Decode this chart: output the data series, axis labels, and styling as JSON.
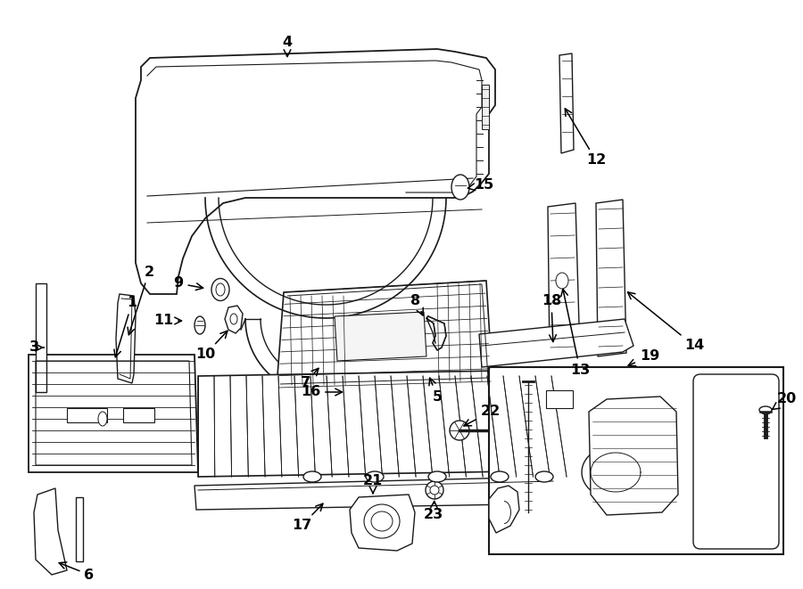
{
  "bg_color": "#ffffff",
  "lc": "#1a1a1a",
  "figsize": [
    9.0,
    6.61
  ],
  "dpi": 100,
  "lw": 1.0,
  "labels": {
    "1": [
      0.148,
      0.498,
      0.115,
      0.49
    ],
    "2": [
      0.167,
      0.59,
      0.143,
      0.59
    ],
    "3": [
      0.04,
      0.59,
      0.064,
      0.59
    ],
    "4": [
      0.358,
      0.95,
      0.358,
      0.918
    ],
    "5": [
      0.49,
      0.418,
      0.49,
      0.445
    ],
    "6": [
      0.1,
      0.105,
      0.09,
      0.128
    ],
    "7": [
      0.342,
      0.388,
      0.358,
      0.413
    ],
    "8": [
      0.486,
      0.527,
      0.508,
      0.535
    ],
    "9": [
      0.203,
      0.483,
      0.23,
      0.48
    ],
    "10": [
      0.237,
      0.415,
      0.252,
      0.428
    ],
    "11": [
      0.183,
      0.456,
      0.208,
      0.454
    ],
    "12": [
      0.668,
      0.818,
      0.654,
      0.818
    ],
    "13": [
      0.656,
      0.578,
      0.682,
      0.567
    ],
    "14": [
      0.778,
      0.578,
      0.758,
      0.567
    ],
    "15": [
      0.545,
      0.752,
      0.562,
      0.752
    ],
    "16": [
      0.355,
      0.352,
      0.4,
      0.358
    ],
    "17": [
      0.34,
      0.175,
      0.368,
      0.195
    ],
    "18": [
      0.618,
      0.495,
      0.632,
      0.472
    ],
    "19": [
      0.728,
      0.375,
      0.735,
      0.318
    ],
    "20": [
      0.882,
      0.522,
      0.87,
      0.488
    ],
    "21": [
      0.428,
      0.133,
      0.44,
      0.155
    ],
    "22": [
      0.552,
      0.293,
      0.535,
      0.29
    ],
    "23": [
      0.488,
      0.1,
      0.49,
      0.122
    ]
  }
}
